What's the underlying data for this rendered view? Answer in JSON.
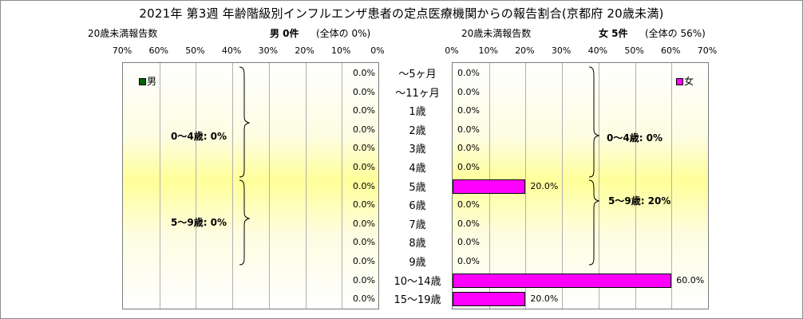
{
  "title": "2021年 第3週 年齢階級別インフルエンザ患者の定点医療機関からの報告割合(京都府 20歳未満)",
  "left_panel": {
    "subtitle_left": "20歳未満報告数",
    "subtitle_bold": "男 0件",
    "subtitle_right": "(全体の  0%)",
    "legend": "男",
    "groups": [
      "0～4歳: 0%",
      "5～9歳: 0%"
    ]
  },
  "right_panel": {
    "subtitle_left": "20歳未満報告数",
    "subtitle_bold": "女 5件",
    "subtitle_right": "(全体の  56%)",
    "legend": "女",
    "groups": [
      "0～4歳: 0%",
      "5～9歳: 20%"
    ]
  },
  "colors": {
    "female_bar": "#ff00ff",
    "male_bar": "#006400"
  },
  "chart_data": {
    "type": "bar",
    "orientation": "horizontal-population-pyramid",
    "categories": [
      "～5ヶ月",
      "～11ヶ月",
      "1歳",
      "2歳",
      "3歳",
      "4歳",
      "5歳",
      "6歳",
      "7歳",
      "8歳",
      "9歳",
      "10～14歳",
      "15～19歳"
    ],
    "xlim": [
      0,
      70
    ],
    "ticks_left": [
      "70%",
      "60%",
      "50%",
      "40%",
      "30%",
      "20%",
      "10%",
      "0%"
    ],
    "ticks_right": [
      "0%",
      "10%",
      "20%",
      "30%",
      "40%",
      "50%",
      "60%",
      "70%"
    ],
    "series": [
      {
        "name": "男",
        "values": [
          0,
          0,
          0,
          0,
          0,
          0,
          0,
          0,
          0,
          0,
          0,
          0,
          0
        ],
        "labels": [
          "0.0%",
          "0.0%",
          "0.0%",
          "0.0%",
          "0.0%",
          "0.0%",
          "0.0%",
          "0.0%",
          "0.0%",
          "0.0%",
          "0.0%",
          "0.0%",
          "0.0%"
        ]
      },
      {
        "name": "女",
        "values": [
          0,
          0,
          0,
          0,
          0,
          0,
          20,
          0,
          0,
          0,
          0,
          60,
          20
        ],
        "labels": [
          "0.0%",
          "0.0%",
          "0.0%",
          "0.0%",
          "0.0%",
          "0.0%",
          "20.0%",
          "0.0%",
          "0.0%",
          "0.0%",
          "0.0%",
          "60.0%",
          "20.0%"
        ]
      }
    ]
  }
}
